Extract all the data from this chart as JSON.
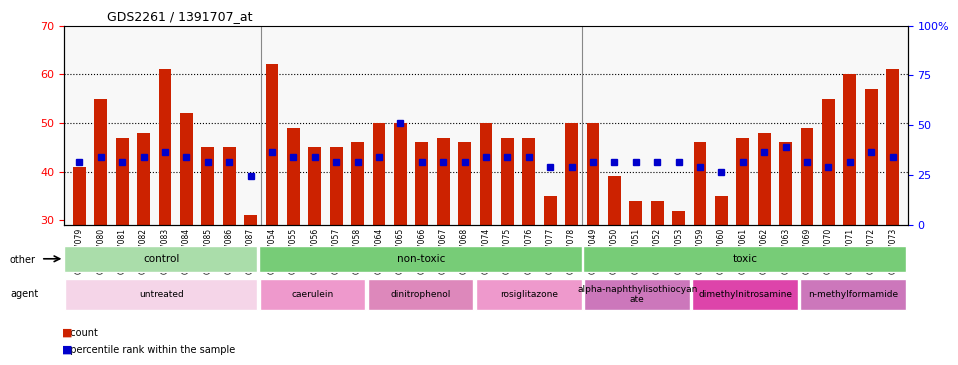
{
  "title": "GDS2261 / 1391707_at",
  "samples": [
    "GSM127079",
    "GSM127080",
    "GSM127081",
    "GSM127082",
    "GSM127083",
    "GSM127084",
    "GSM127085",
    "GSM127086",
    "GSM127087",
    "GSM127054",
    "GSM127055",
    "GSM127056",
    "GSM127057",
    "GSM127058",
    "GSM127064",
    "GSM127065",
    "GSM127066",
    "GSM127067",
    "GSM127068",
    "GSM127074",
    "GSM127075",
    "GSM127076",
    "GSM127077",
    "GSM127078",
    "GSM127049",
    "GSM127050",
    "GSM127051",
    "GSM127052",
    "GSM127053",
    "GSM127059",
    "GSM127060",
    "GSM127061",
    "GSM127062",
    "GSM127063",
    "GSM127069",
    "GSM127070",
    "GSM127071",
    "GSM127072",
    "GSM127073"
  ],
  "bar_heights": [
    41,
    55,
    47,
    48,
    61,
    52,
    45,
    45,
    31,
    62,
    49,
    45,
    45,
    46,
    50,
    50,
    46,
    47,
    46,
    50,
    47,
    47,
    35,
    50,
    50,
    39,
    34,
    34,
    32,
    46,
    35,
    47,
    48,
    46,
    49,
    55,
    60,
    57,
    61
  ],
  "blue_dots": [
    42,
    43,
    42,
    43,
    44,
    43,
    42,
    42,
    39,
    44,
    43,
    43,
    42,
    42,
    43,
    50,
    42,
    42,
    42,
    43,
    43,
    43,
    41,
    41,
    42,
    42,
    42,
    42,
    42,
    41,
    40,
    42,
    44,
    45,
    42,
    41,
    42,
    44,
    43
  ],
  "ylim_left": [
    29,
    70
  ],
  "yticks_left": [
    30,
    40,
    50,
    60,
    70
  ],
  "ylim_right": [
    0,
    100
  ],
  "yticks_right": [
    0,
    25,
    50,
    75,
    100
  ],
  "bar_color": "#cc2200",
  "dot_color": "#0000cc",
  "bg_color": "#f0f0f0",
  "grid_color": "#000000",
  "groups_other": [
    {
      "label": "control",
      "start": 0,
      "end": 9,
      "color": "#99ee99"
    },
    {
      "label": "non-toxic",
      "start": 9,
      "end": 24,
      "color": "#88dd88"
    },
    {
      "label": "toxic",
      "start": 24,
      "end": 39,
      "color": "#88dd88"
    }
  ],
  "groups_agent": [
    {
      "label": "untreated",
      "start": 0,
      "end": 9,
      "color": "#f0c8e0"
    },
    {
      "label": "caerulein",
      "start": 9,
      "end": 14,
      "color": "#ee99cc"
    },
    {
      "label": "dinitrophenol",
      "start": 14,
      "end": 19,
      "color": "#ee88bb"
    },
    {
      "label": "rosiglitazone",
      "start": 19,
      "end": 24,
      "color": "#ee99cc"
    },
    {
      "label": "alpha-naphthylisothiocyan\nate",
      "start": 24,
      "end": 29,
      "color": "#dd88bb"
    },
    {
      "label": "dimethylnitrosamine",
      "start": 29,
      "end": 34,
      "color": "#ee44aa"
    },
    {
      "label": "n-methylformamide",
      "start": 34,
      "end": 39,
      "color": "#dd88cc"
    }
  ],
  "other_colors": [
    "#aaddaa",
    "#88cc88",
    "#77cc77"
  ],
  "legend_count_color": "#cc2200",
  "legend_dot_color": "#0000cc"
}
